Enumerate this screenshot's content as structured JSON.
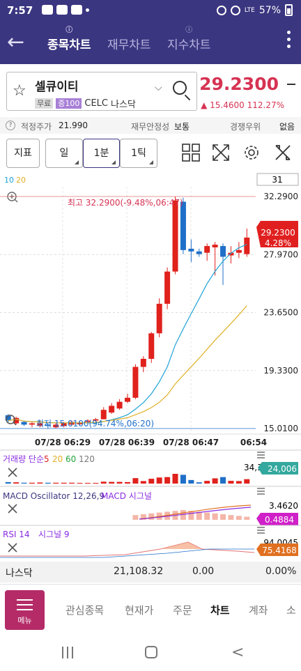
{
  "status": {
    "time": "7:57",
    "battery": "57%",
    "network": "LTE"
  },
  "nav": {
    "tabs": [
      {
        "label": "종목차트",
        "active": true
      },
      {
        "label": "재무차트",
        "active": false
      },
      {
        "label": "지수차트",
        "active": false
      }
    ],
    "tab_marker": "ⓘ"
  },
  "stock": {
    "name": "셀큐이티",
    "badge_free": "무료",
    "badge_margin": "증100",
    "code": "CELC",
    "market": "나스닥",
    "price": "29.2300",
    "change_arrow": "▲",
    "change": "15.4600",
    "change_pct": "112.27%"
  },
  "info": {
    "help": "?",
    "fair_label": "적정주가",
    "fair_value": "21.990",
    "stability_label": "재무안정성",
    "stability_value": "보통",
    "rank_label": "경쟁우위",
    "rank_value": "없음"
  },
  "toolbar": {
    "indicator": "지표",
    "day": "일",
    "minute": "1분",
    "tick": "1틱"
  },
  "chart": {
    "ma_labels": [
      "10",
      "20"
    ],
    "count": "31",
    "high_label": "최고 32.2900(-9.48%,06:47)",
    "low_label": "최저 15.0100(94.74%,06:20)",
    "price_badge": "29.2300",
    "price_badge_pct": "4.28%",
    "colors": {
      "up": "#e0211c",
      "down": "#1f6fc9",
      "ma10": "#1fa3d6",
      "ma20": "#e0b026"
    }
  },
  "chart_data": {
    "type": "candlestick",
    "y_ticks": [
      "32.2900",
      "27.9700",
      "23.6500",
      "19.3300",
      "15.0100"
    ],
    "ylim": [
      15.01,
      32.29
    ],
    "x_ticks": [
      "07/28 06:29",
      "07/28 06:39",
      "07/28 06:47",
      "06:54"
    ],
    "candles": [
      {
        "o": 16.0,
        "c": 15.6,
        "h": 16.1,
        "l": 15.4
      },
      {
        "o": 15.4,
        "c": 15.8,
        "h": 15.9,
        "l": 15.3
      },
      {
        "o": 15.5,
        "c": 15.3,
        "h": 15.6,
        "l": 15.2
      },
      {
        "o": 15.3,
        "c": 15.4,
        "h": 15.5,
        "l": 15.1
      },
      {
        "o": 15.2,
        "c": 15.4,
        "h": 15.6,
        "l": 15.1
      },
      {
        "o": 15.3,
        "c": 15.2,
        "h": 15.4,
        "l": 15.0
      },
      {
        "o": 15.1,
        "c": 15.3,
        "h": 15.4,
        "l": 15.0
      },
      {
        "o": 15.2,
        "c": 15.4,
        "h": 15.5,
        "l": 15.1
      },
      {
        "o": 15.3,
        "c": 15.5,
        "h": 15.6,
        "l": 15.2
      },
      {
        "o": 15.4,
        "c": 15.4,
        "h": 15.6,
        "l": 15.3
      },
      {
        "o": 15.5,
        "c": 15.6,
        "h": 15.7,
        "l": 15.4
      },
      {
        "o": 15.6,
        "c": 15.7,
        "h": 15.8,
        "l": 15.5
      },
      {
        "o": 15.7,
        "c": 16.4,
        "h": 16.6,
        "l": 15.7
      },
      {
        "o": 16.2,
        "c": 16.7,
        "h": 16.9,
        "l": 16.1
      },
      {
        "o": 16.5,
        "c": 17.0,
        "h": 17.2,
        "l": 16.4
      },
      {
        "o": 17.0,
        "c": 17.3,
        "h": 17.6,
        "l": 16.9
      },
      {
        "o": 17.3,
        "c": 19.6,
        "h": 19.8,
        "l": 17.2
      },
      {
        "o": 19.6,
        "c": 20.2,
        "h": 20.4,
        "l": 19.2
      },
      {
        "o": 20.2,
        "c": 22.1,
        "h": 22.2,
        "l": 19.9
      },
      {
        "o": 22.1,
        "c": 24.3,
        "h": 24.7,
        "l": 21.8
      },
      {
        "o": 24.3,
        "c": 26.7,
        "h": 27.0,
        "l": 23.9
      },
      {
        "o": 26.7,
        "c": 32.0,
        "h": 32.29,
        "l": 26.5
      },
      {
        "o": 31.9,
        "c": 28.3,
        "h": 32.2,
        "l": 28.0
      },
      {
        "o": 28.4,
        "c": 28.2,
        "h": 29.1,
        "l": 27.4
      },
      {
        "o": 28.2,
        "c": 28.0,
        "h": 28.4,
        "l": 27.8
      },
      {
        "o": 28.1,
        "c": 28.6,
        "h": 28.8,
        "l": 27.5
      },
      {
        "o": 28.5,
        "c": 28.7,
        "h": 28.9,
        "l": 26.4
      },
      {
        "o": 28.6,
        "c": 27.8,
        "h": 28.8,
        "l": 25.7
      },
      {
        "o": 27.9,
        "c": 28.1,
        "h": 28.6,
        "l": 27.3
      },
      {
        "o": 28.1,
        "c": 28.3,
        "h": 28.9,
        "l": 27.7
      },
      {
        "o": 28.0,
        "c": 29.23,
        "h": 29.9,
        "l": 27.8
      }
    ]
  },
  "sub": {
    "volume_title": "거래량 단순",
    "volume_periods": [
      "5",
      "20",
      "60",
      "120"
    ],
    "volume_top": "34,350",
    "volume_badge": "24,006",
    "macd_title": "MACD Oscillator 12,26,9",
    "macd_title2": "MACD 시그널",
    "macd_top": "3.4620",
    "macd_badge": "0.4884",
    "rsi_title": "RSI 14",
    "rsi_title2": "시그널 9",
    "rsi_top": "94.0045",
    "rsi_badge": "75.4168"
  },
  "summary": {
    "market": "나스닥",
    "value": "21,108.32",
    "change": "0.00",
    "pct": "0.00%"
  },
  "bottom": {
    "menu": "메뉴",
    "items": [
      {
        "label": "관심종목",
        "active": false
      },
      {
        "label": "현재가",
        "active": false
      },
      {
        "label": "주문",
        "active": false
      },
      {
        "label": "차트",
        "active": true
      },
      {
        "label": "계좌",
        "active": false
      },
      {
        "label": "소",
        "active": false
      }
    ]
  }
}
